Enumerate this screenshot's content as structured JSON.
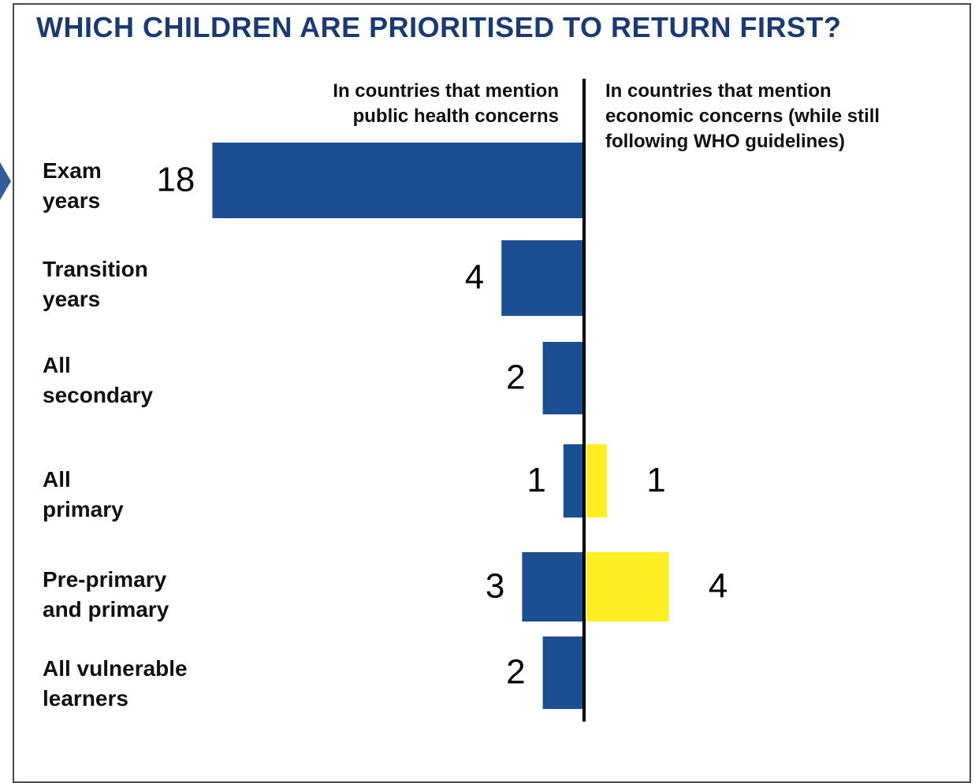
{
  "chart_data": {
    "type": "bar",
    "orientation": "horizontal-diverging",
    "title": "WHICH CHILDREN ARE PRIORITISED TO RETURN FIRST?",
    "left_header": [
      "In countries that mention",
      "public health concerns"
    ],
    "right_header": [
      "In countries that mention",
      "economic concerns (while still",
      "following WHO guidelines)"
    ],
    "categories": [
      [
        "Exam",
        "years"
      ],
      [
        "Transition",
        "years"
      ],
      [
        "All",
        "secondary"
      ],
      [
        "All",
        "primary"
      ],
      [
        "Pre-primary",
        "and primary"
      ],
      [
        "All vulnerable",
        "learners"
      ]
    ],
    "series": [
      {
        "side": "left",
        "color": "#1c4f91",
        "values": [
          18,
          4,
          2,
          1,
          3,
          2
        ]
      },
      {
        "side": "right",
        "color": "#ffee22",
        "values": [
          0,
          0,
          0,
          1,
          4,
          0
        ]
      }
    ],
    "grid": false,
    "legend": "none"
  }
}
